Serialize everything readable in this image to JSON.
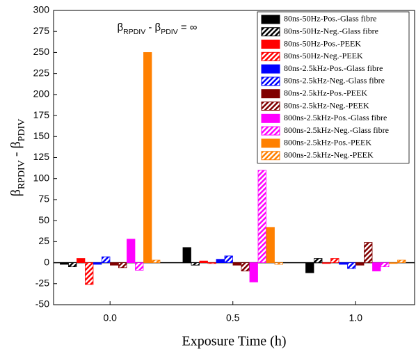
{
  "chart_data": {
    "type": "bar",
    "annotation": [
      "β",
      "RPDIV",
      " - β",
      "PDIV",
      " = ∞"
    ],
    "ylabel": [
      "β",
      "RPDIV",
      " - β",
      "PDIV"
    ],
    "xlabel": "Exposure Time (h)",
    "x": [
      0,
      0.5,
      1
    ],
    "xlim": [
      -0.23,
      1.24
    ],
    "xticks": [
      {
        "value": 0,
        "label": "0.0"
      },
      {
        "value": 0.5,
        "label": "0.5"
      },
      {
        "value": 1,
        "label": "1.0"
      }
    ],
    "ylim": [
      -50,
      300
    ],
    "yticks": [
      -50,
      -25,
      0,
      25,
      50,
      75,
      100,
      125,
      150,
      175,
      200,
      225,
      250,
      275,
      300
    ],
    "legend": "upper right",
    "series": [
      {
        "name": "80ns-50Hz-Pos.-Glass fibre",
        "color": "#000000",
        "hatch": false,
        "values": [
          -2,
          18,
          -12
        ]
      },
      {
        "name": "80ns-50Hz-Neg.-Glass fibre",
        "color": "#000000",
        "hatch": true,
        "values": [
          -5,
          -3,
          5
        ]
      },
      {
        "name": "80ns-50Hz-Pos.-PEEK",
        "color": "#ff0000",
        "hatch": false,
        "values": [
          5,
          2,
          -1
        ]
      },
      {
        "name": "80ns-50Hz-Neg.-PEEK",
        "color": "#ff0000",
        "hatch": true,
        "values": [
          -26,
          -1,
          5
        ]
      },
      {
        "name": "80ns-2.5kHz-Pos.-Glass fibre",
        "color": "#0000ff",
        "hatch": false,
        "values": [
          -2,
          4,
          -2
        ]
      },
      {
        "name": "80ns-2.5kHz-Neg.-Glass fibre",
        "color": "#0000ff",
        "hatch": true,
        "values": [
          7,
          8,
          -7
        ]
      },
      {
        "name": "80ns-2.5kHz-Pos.-PEEK",
        "color": "#800000",
        "hatch": false,
        "values": [
          -3,
          -3,
          -3
        ]
      },
      {
        "name": "80ns-2.5kHz-Neg.-PEEK",
        "color": "#800000",
        "hatch": true,
        "values": [
          -6,
          -10,
          24
        ]
      },
      {
        "name": "800ns-2.5kHz-Pos.-Glass fibre",
        "color": "#ff00ff",
        "hatch": false,
        "values": [
          28,
          -23,
          -10
        ]
      },
      {
        "name": "800ns-2.5kHz-Neg.-Glass fibre",
        "color": "#ff00ff",
        "hatch": true,
        "values": [
          -9,
          110,
          -5
        ]
      },
      {
        "name": "800ns-2.5kHz-Pos.-PEEK",
        "color": "#ff8000",
        "hatch": false,
        "values": [
          250,
          42,
          -1
        ]
      },
      {
        "name": "800ns-2.5kHz-Neg.-PEEK",
        "color": "#ff8000",
        "hatch": true,
        "values": [
          3,
          -2,
          3
        ]
      }
    ]
  }
}
